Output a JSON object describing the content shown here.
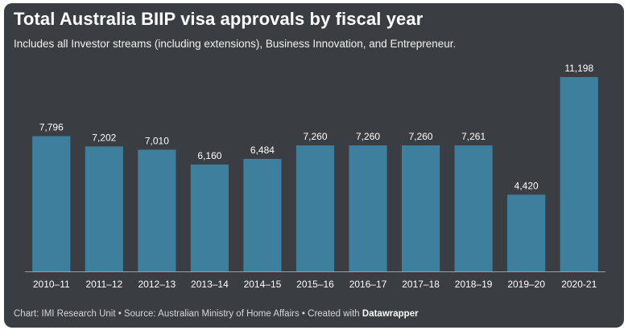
{
  "title": "Total Australia BIIP visa approvals by fiscal year",
  "subtitle": "Includes all Investor streams (including extensions), Business Innovation, and Entrepreneur.",
  "footer": {
    "chart_by": "Chart: IMI Research Unit",
    "separator_1": " • ",
    "source": "Source: Australian Ministry of Home Affairs",
    "separator_2": " • ",
    "created_with": "Created with ",
    "brand": "Datawrapper"
  },
  "colors": {
    "background": "#3a3d42",
    "bar": "#3f7f9e",
    "text": "#ffffff",
    "baseline": "#9aa0a6"
  },
  "chart_data": {
    "type": "bar",
    "categories": [
      "2010–11",
      "2011–12",
      "2012–13",
      "2013–14",
      "2014–15",
      "2015–16",
      "2016–17",
      "2017–18",
      "2018–19",
      "2019–20",
      "2020-21"
    ],
    "values": [
      7796,
      7202,
      7010,
      6160,
      6484,
      7260,
      7260,
      7260,
      7261,
      4420,
      11198
    ],
    "value_labels": [
      "7,796",
      "7,202",
      "7,010",
      "6,160",
      "6,484",
      "7,260",
      "7,260",
      "7,260",
      "7,261",
      "4,420",
      "11,198"
    ],
    "ylim": [
      0,
      11198
    ],
    "grid": false,
    "legend": "none"
  }
}
